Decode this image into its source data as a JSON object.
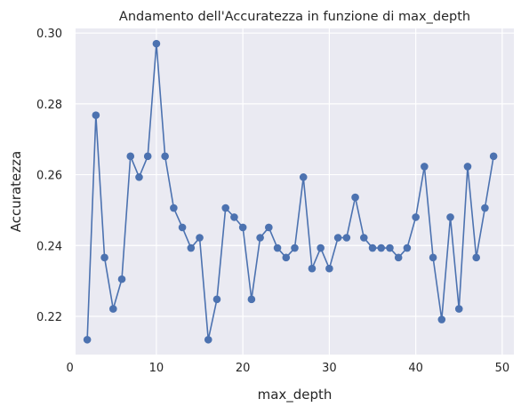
{
  "chart_data": {
    "type": "line",
    "title": "Andamento dell'Accuratezza in funzione di max_depth",
    "xlabel": "max_depth",
    "ylabel": "Accuratezza",
    "xlim": [
      0.65,
      51.35
    ],
    "ylim": [
      0.2092,
      0.3013
    ],
    "xticks": [
      0,
      10,
      20,
      30,
      40,
      50
    ],
    "yticks": [
      0.22,
      0.24,
      0.26,
      0.28,
      0.3
    ],
    "grid": true,
    "legend": "none",
    "series": [
      {
        "color": "#4c72b0",
        "marker": "circle",
        "x": [
          2,
          3,
          4,
          5,
          6,
          7,
          8,
          9,
          10,
          11,
          12,
          13,
          14,
          15,
          16,
          17,
          18,
          19,
          20,
          21,
          22,
          23,
          24,
          25,
          26,
          27,
          28,
          29,
          30,
          31,
          32,
          33,
          34,
          35,
          36,
          37,
          38,
          39,
          40,
          41,
          42,
          43,
          44,
          45,
          46,
          47,
          48,
          49
        ],
        "y": [
          0.2134,
          0.2768,
          0.2366,
          0.2221,
          0.2305,
          0.2652,
          0.2593,
          0.2652,
          0.297,
          0.2652,
          0.2506,
          0.2451,
          0.2393,
          0.2422,
          0.2134,
          0.2248,
          0.2506,
          0.248,
          0.2451,
          0.2248,
          0.2422,
          0.2451,
          0.2393,
          0.2366,
          0.2393,
          0.2593,
          0.2335,
          0.2393,
          0.2335,
          0.2422,
          0.2422,
          0.2536,
          0.2422,
          0.2393,
          0.2393,
          0.2393,
          0.2366,
          0.2393,
          0.248,
          0.2623,
          0.2366,
          0.2191,
          0.248,
          0.2221,
          0.2623,
          0.2366,
          0.2506,
          0.2652
        ]
      }
    ]
  },
  "style": {
    "axes_bg": "#eaeaf2",
    "grid_color": "#ffffff",
    "line_color": "#4c72b0"
  }
}
